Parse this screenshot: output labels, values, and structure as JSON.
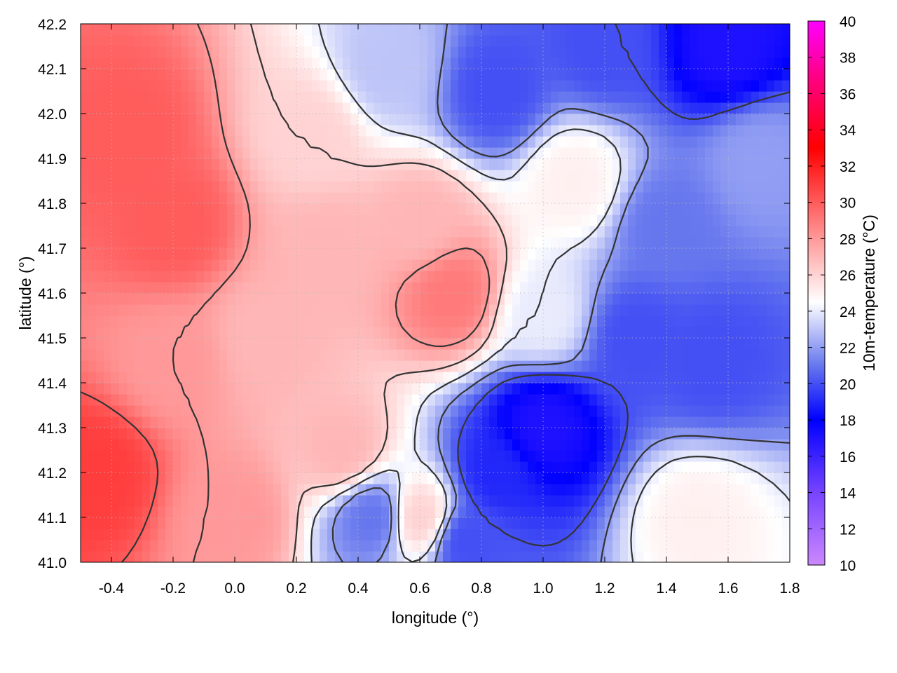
{
  "chart_data": {
    "type": "heatmap",
    "title": "",
    "xlabel": "longitude (°)",
    "ylabel": "latitude (°)",
    "colorbar_label": "10m-temperature (°C)",
    "xlim": [
      -0.5,
      1.8
    ],
    "ylim": [
      41.0,
      42.2
    ],
    "x_ticks": [
      -0.4,
      -0.2,
      0.0,
      0.2,
      0.4,
      0.6,
      0.8,
      1.0,
      1.2,
      1.4,
      1.6,
      1.8
    ],
    "x_tick_labels": [
      "-0.4",
      "-0.2",
      "0.0",
      "0.2",
      "0.4",
      "0.6",
      "0.8",
      "1.0",
      "1.2",
      "1.4",
      "1.6",
      "1.8"
    ],
    "y_ticks": [
      41.0,
      41.1,
      41.2,
      41.3,
      41.4,
      41.5,
      41.6,
      41.7,
      41.8,
      41.9,
      42.0,
      42.1,
      42.2
    ],
    "y_tick_labels": [
      "41.0",
      "41.1",
      "41.2",
      "41.3",
      "41.4",
      "41.5",
      "41.6",
      "41.7",
      "41.8",
      "41.9",
      "42.0",
      "42.1",
      "42.2"
    ],
    "colorbar_range": [
      10,
      40
    ],
    "colorbar_ticks": [
      10,
      12,
      14,
      16,
      18,
      20,
      22,
      24,
      26,
      28,
      30,
      32,
      34,
      36,
      38,
      40
    ],
    "colorbar_tick_labels": [
      "10",
      "12",
      "14",
      "16",
      "18",
      "20",
      "22",
      "24",
      "26",
      "28",
      "30",
      "32",
      "34",
      "36",
      "38",
      "40"
    ],
    "colormap": [
      {
        "value": 10,
        "color": "#cc88ff"
      },
      {
        "value": 14,
        "color": "#7744ff"
      },
      {
        "value": 18,
        "color": "#0000ff"
      },
      {
        "value": 21,
        "color": "#6677ee"
      },
      {
        "value": 24.5,
        "color": "#ffffff"
      },
      {
        "value": 28,
        "color": "#ff9999"
      },
      {
        "value": 33,
        "color": "#ff0000"
      },
      {
        "value": 37,
        "color": "#ff0088"
      },
      {
        "value": 40,
        "color": "#ff00ff"
      }
    ],
    "grid": true,
    "temperature_field_estimate": [
      {
        "lon": -0.45,
        "lat": 41.2,
        "temp": 31
      },
      {
        "lon": -0.35,
        "lat": 41.95,
        "temp": 30
      },
      {
        "lon": -0.2,
        "lat": 41.75,
        "temp": 30
      },
      {
        "lon": -0.2,
        "lat": 41.45,
        "temp": 28
      },
      {
        "lon": 0.1,
        "lat": 41.5,
        "temp": 27
      },
      {
        "lon": 0.0,
        "lat": 41.1,
        "temp": 28
      },
      {
        "lon": 0.3,
        "lat": 41.7,
        "temp": 27
      },
      {
        "lon": 0.7,
        "lat": 41.6,
        "temp": 29
      },
      {
        "lon": 0.6,
        "lat": 41.75,
        "temp": 27
      },
      {
        "lon": 0.35,
        "lat": 41.25,
        "temp": 27
      },
      {
        "lon": 0.25,
        "lat": 41.95,
        "temp": 26
      },
      {
        "lon": 0.5,
        "lat": 42.1,
        "temp": 23
      },
      {
        "lon": 0.85,
        "lat": 42.05,
        "temp": 20
      },
      {
        "lon": 1.2,
        "lat": 42.15,
        "temp": 20
      },
      {
        "lon": 1.6,
        "lat": 42.15,
        "temp": 17
      },
      {
        "lon": 1.7,
        "lat": 41.9,
        "temp": 22
      },
      {
        "lon": 1.4,
        "lat": 41.75,
        "temp": 21
      },
      {
        "lon": 1.3,
        "lat": 41.5,
        "temp": 20
      },
      {
        "lon": 1.55,
        "lat": 41.45,
        "temp": 20
      },
      {
        "lon": 1.0,
        "lat": 41.3,
        "temp": 17
      },
      {
        "lon": 0.85,
        "lat": 41.2,
        "temp": 19
      },
      {
        "lon": 0.75,
        "lat": 41.05,
        "temp": 20
      },
      {
        "lon": 0.45,
        "lat": 41.1,
        "temp": 21
      },
      {
        "lon": 1.5,
        "lat": 41.1,
        "temp": 25
      },
      {
        "lon": 1.0,
        "lat": 41.55,
        "temp": 24
      },
      {
        "lon": 1.1,
        "lat": 41.85,
        "temp": 25
      },
      {
        "lon": 0.6,
        "lat": 41.1,
        "temp": 26
      }
    ]
  }
}
